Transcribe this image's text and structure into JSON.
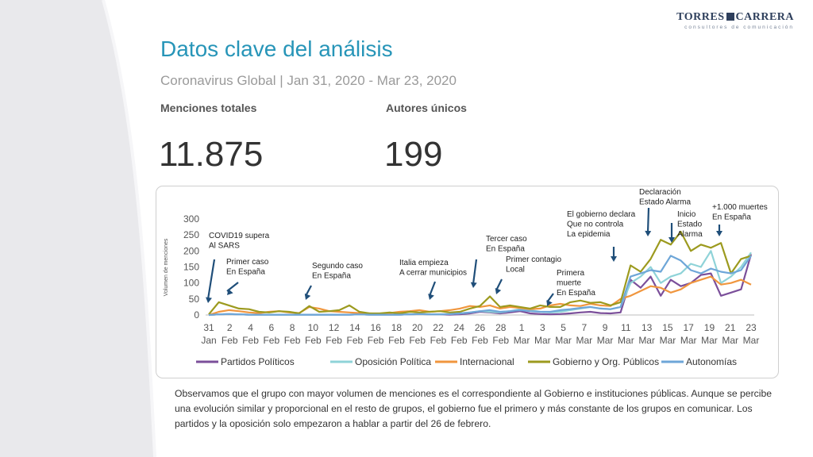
{
  "brand": {
    "name_left": "TORRES",
    "name_right": "CARRERA",
    "tagline": "consultores de comunicación"
  },
  "header": {
    "title": "Datos clave del análisis",
    "subtitle": "Coronavirus Global | Jan 31, 2020 - Mar 23, 2020"
  },
  "stats": {
    "mentions_label": "Menciones totales",
    "mentions_value": "11.875",
    "authors_label": "Autores únicos",
    "authors_value": "199"
  },
  "chart_data": {
    "type": "line",
    "ylabel": "Volumen de menciones",
    "ylim": [
      0,
      300
    ],
    "yticks": [
      0,
      50,
      100,
      150,
      200,
      250,
      300
    ],
    "xticks": [
      {
        "day": "31",
        "month": "Jan"
      },
      {
        "day": "2",
        "month": "Feb"
      },
      {
        "day": "4",
        "month": "Feb"
      },
      {
        "day": "6",
        "month": "Feb"
      },
      {
        "day": "8",
        "month": "Feb"
      },
      {
        "day": "10",
        "month": "Feb"
      },
      {
        "day": "12",
        "month": "Feb"
      },
      {
        "day": "14",
        "month": "Feb"
      },
      {
        "day": "16",
        "month": "Feb"
      },
      {
        "day": "18",
        "month": "Feb"
      },
      {
        "day": "20",
        "month": "Feb"
      },
      {
        "day": "22",
        "month": "Feb"
      },
      {
        "day": "24",
        "month": "Feb"
      },
      {
        "day": "26",
        "month": "Feb"
      },
      {
        "day": "28",
        "month": "Feb"
      },
      {
        "day": "1",
        "month": "Mar"
      },
      {
        "day": "3",
        "month": "Mar"
      },
      {
        "day": "5",
        "month": "Mar"
      },
      {
        "day": "7",
        "month": "Mar"
      },
      {
        "day": "9",
        "month": "Mar"
      },
      {
        "day": "11",
        "month": "Mar"
      },
      {
        "day": "13",
        "month": "Mar"
      },
      {
        "day": "15",
        "month": "Mar"
      },
      {
        "day": "17",
        "month": "Mar"
      },
      {
        "day": "19",
        "month": "Mar"
      },
      {
        "day": "21",
        "month": "Mar"
      },
      {
        "day": "23",
        "month": "Mar"
      }
    ],
    "series": [
      {
        "name": "Partidos Políticos",
        "color": "#7b4f9a",
        "values": [
          0,
          2,
          3,
          2,
          1,
          1,
          1,
          1,
          1,
          1,
          1,
          1,
          1,
          1,
          1,
          2,
          1,
          1,
          1,
          1,
          2,
          3,
          2,
          2,
          1,
          2,
          5,
          10,
          8,
          5,
          8,
          12,
          5,
          3,
          2,
          3,
          5,
          8,
          10,
          6,
          5,
          8,
          110,
          85,
          120,
          60,
          110,
          90,
          100,
          125,
          130,
          60,
          70,
          80,
          190
        ]
      },
      {
        "name": "Oposición Política",
        "color": "#8fd3d8",
        "values": [
          0,
          2,
          3,
          2,
          1,
          1,
          1,
          1,
          1,
          1,
          1,
          1,
          1,
          1,
          1,
          2,
          1,
          1,
          1,
          1,
          2,
          3,
          2,
          2,
          3,
          5,
          8,
          12,
          10,
          8,
          12,
          18,
          15,
          10,
          8,
          10,
          15,
          20,
          25,
          20,
          18,
          25,
          100,
          120,
          150,
          100,
          120,
          130,
          160,
          150,
          200,
          100,
          120,
          150,
          195
        ]
      },
      {
        "name": "Internacional",
        "color": "#f0963e",
        "values": [
          0,
          10,
          15,
          12,
          8,
          6,
          10,
          12,
          8,
          6,
          25,
          20,
          12,
          10,
          8,
          6,
          5,
          4,
          6,
          10,
          12,
          15,
          10,
          12,
          15,
          20,
          28,
          25,
          30,
          20,
          25,
          22,
          18,
          20,
          30,
          35,
          30,
          28,
          35,
          30,
          28,
          50,
          60,
          75,
          90,
          85,
          70,
          80,
          100,
          110,
          120,
          95,
          100,
          110,
          95
        ]
      },
      {
        "name": "Gobierno y Org. Públicos",
        "color": "#9c9a1e",
        "values": [
          2,
          40,
          30,
          20,
          18,
          10,
          8,
          12,
          10,
          5,
          28,
          10,
          12,
          15,
          30,
          10,
          5,
          5,
          8,
          5,
          10,
          8,
          10,
          12,
          8,
          10,
          20,
          28,
          58,
          25,
          30,
          25,
          20,
          30,
          25,
          25,
          40,
          45,
          38,
          40,
          30,
          40,
          155,
          135,
          175,
          235,
          220,
          260,
          200,
          220,
          210,
          225,
          130,
          175,
          185
        ]
      },
      {
        "name": "Autonomías",
        "color": "#6ea6d8",
        "values": [
          0,
          2,
          3,
          2,
          1,
          1,
          1,
          1,
          1,
          1,
          1,
          1,
          1,
          1,
          1,
          2,
          1,
          1,
          1,
          1,
          2,
          3,
          2,
          2,
          3,
          5,
          8,
          12,
          15,
          10,
          12,
          15,
          12,
          10,
          10,
          15,
          18,
          22,
          25,
          20,
          18,
          25,
          120,
          130,
          140,
          135,
          185,
          170,
          140,
          130,
          145,
          135,
          130,
          140,
          185
        ]
      }
    ],
    "annotations": [
      {
        "text": [
          "COVID19 supera",
          "Al SARS"
        ]
      },
      {
        "text": [
          "Primer caso",
          "En España"
        ]
      },
      {
        "text": [
          "Segundo caso",
          "En España"
        ]
      },
      {
        "text": [
          "Italia empieza",
          "A cerrar municipios"
        ]
      },
      {
        "text": [
          "Tercer caso",
          "En España"
        ]
      },
      {
        "text": [
          "Primer contagio",
          "Local"
        ]
      },
      {
        "text": [
          "Primera",
          "muerte",
          "En España"
        ]
      },
      {
        "text": [
          "El gobierno declara",
          "Que no controla",
          "La epidemia"
        ]
      },
      {
        "text": [
          "Declaración",
          "Estado Alarma"
        ]
      },
      {
        "text": [
          "Inicio",
          "Estado",
          "Alarma"
        ]
      },
      {
        "text": [
          "+1.000 muertes",
          "En España"
        ]
      }
    ]
  },
  "footer": {
    "text": "Observamos que el grupo con mayor volumen de menciones es el correspondiente al Gobierno e instituciones públicas. Aunque se percibe una evolución similar y proporcional en el resto de grupos, el gobierno fue el primero y más constante de los grupos en comunicar. Los partidos y la oposición solo empezaron a hablar a partir del 26 de febrero."
  }
}
